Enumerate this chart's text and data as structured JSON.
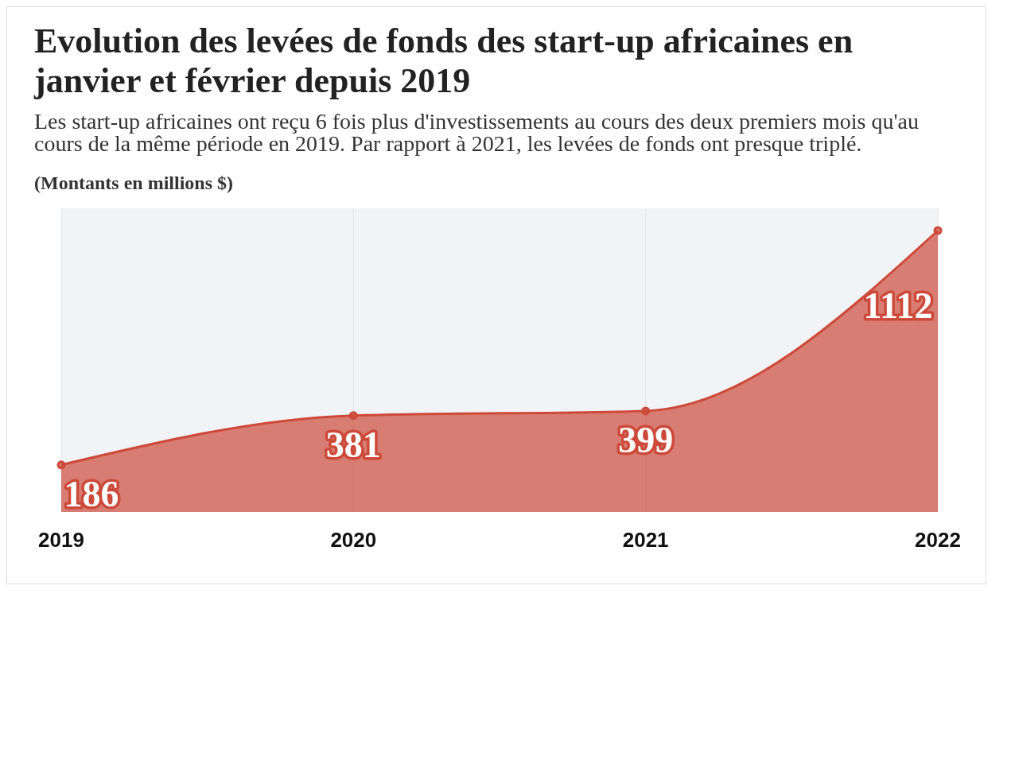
{
  "chart_data": {
    "type": "area",
    "title": "Evolution des levées de fonds des start-up africaines en janvier et février depuis 2019",
    "subtitle": "Les start-up africaines ont reçu 6 fois plus d'investissements au cours des deux premiers mois qu'au cours de la même période en 2019. Par rapport à 2021, les levées de fonds ont presque triplé.",
    "ylabel": "(Montants en millions $)",
    "categories": [
      "2019",
      "2020",
      "2021",
      "2022"
    ],
    "series": [
      {
        "color": "#cd4a3a",
        "values": [
          186,
          381,
          399,
          1112
        ]
      }
    ],
    "ylim": [
      0,
      1200
    ],
    "data_labels": true,
    "grid": "x",
    "marker": "circle"
  }
}
